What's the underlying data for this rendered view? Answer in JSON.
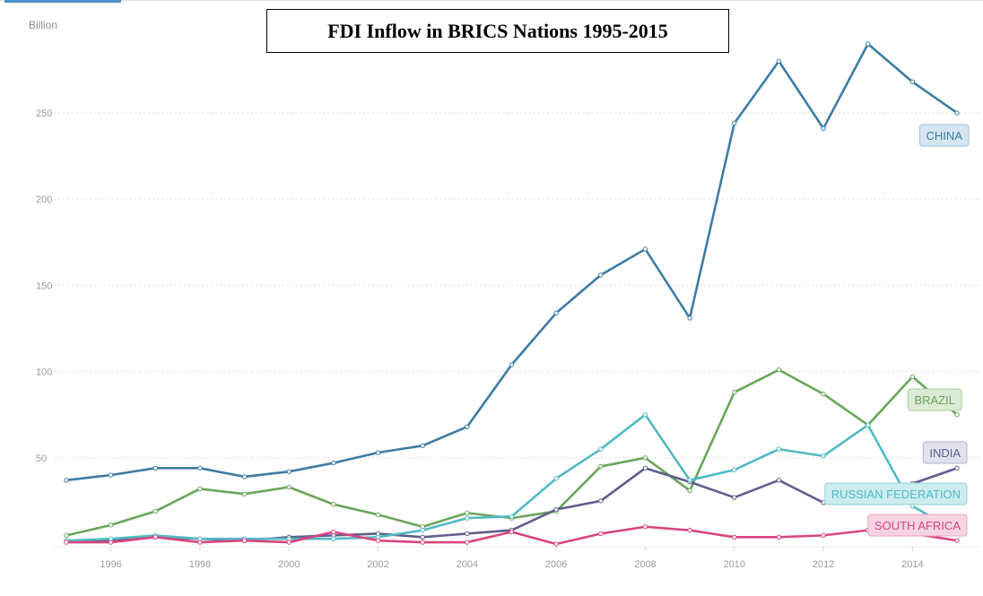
{
  "chart_data": {
    "type": "line",
    "title": "FDI Inflow in BRICS Nations 1995-2015",
    "ylabel": "Billion",
    "xlabel": "",
    "x": [
      1995,
      1996,
      1997,
      1998,
      1999,
      2000,
      2001,
      2002,
      2003,
      2004,
      2005,
      2006,
      2007,
      2008,
      2009,
      2010,
      2011,
      2012,
      2013,
      2014,
      2015
    ],
    "xlim": [
      1995,
      2015
    ],
    "ylim": [
      0,
      290
    ],
    "y_ticks": [
      50,
      100,
      150,
      200,
      250
    ],
    "x_ticks": [
      1996,
      1998,
      2000,
      2002,
      2004,
      2006,
      2008,
      2010,
      2012,
      2014
    ],
    "grid": "horizontal dashed",
    "series": [
      {
        "name": "CHINA",
        "color": "#3e7ca3",
        "label_bg": "#d6e5f0",
        "label_border": "#9fc0d8",
        "values": [
          37,
          40,
          44,
          44,
          39,
          42,
          47,
          53,
          57,
          68,
          104,
          134,
          156,
          171,
          131,
          244,
          280,
          241,
          290,
          268,
          250
        ]
      },
      {
        "name": "BRAZIL",
        "color": "#6aa55a",
        "label_bg": "#dcebd6",
        "label_border": "#a8cc9c",
        "values": [
          5,
          11,
          19,
          32,
          29,
          33,
          23,
          17,
          10,
          18,
          15,
          19,
          45,
          50,
          31,
          88,
          101,
          87,
          69,
          97,
          75
        ]
      },
      {
        "name": "INDIA",
        "color": "#5f5e8c",
        "label_bg": "#e1e1ee",
        "label_border": "#b3b3cf",
        "values": [
          2,
          2,
          4,
          3,
          2,
          4,
          5,
          6,
          4,
          6,
          8,
          20,
          25,
          44,
          36,
          27,
          37,
          24,
          28,
          35,
          44
        ]
      },
      {
        "name": "RUSSIAN FEDERATION",
        "color": "#52b9c4",
        "label_bg": "#cdecef",
        "label_border": "#93d3da",
        "values": [
          2,
          3,
          5,
          3,
          3,
          3,
          3,
          4,
          8,
          15,
          16,
          38,
          55,
          75,
          37,
          43,
          55,
          51,
          69,
          22,
          7
        ]
      },
      {
        "name": "SOUTH AFRICA",
        "color": "#d9457f",
        "label_bg": "#f7d3e1",
        "label_border": "#eaa3bf",
        "values": [
          1,
          1,
          4,
          1,
          2,
          1,
          7,
          2,
          1,
          1,
          7,
          0,
          6,
          10,
          8,
          4,
          4,
          5,
          8,
          6,
          2
        ]
      }
    ]
  }
}
